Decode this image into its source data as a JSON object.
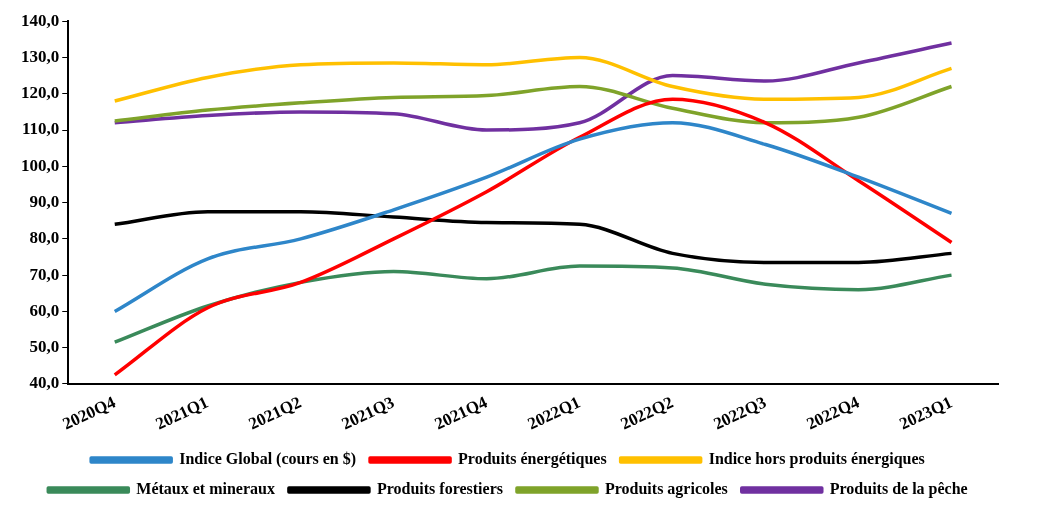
{
  "chart_data": {
    "type": "line",
    "categories": [
      "2020Q4",
      "2021Q1",
      "2021Q2",
      "2021Q3",
      "2021Q4",
      "2022Q1",
      "2022Q2",
      "2022Q3",
      "2022Q4",
      "2023Q1"
    ],
    "ylim": [
      40,
      140
    ],
    "yticks": [
      {
        "value": 40,
        "label": "40,0"
      },
      {
        "value": 50,
        "label": "50,0"
      },
      {
        "value": 60,
        "label": "60,0"
      },
      {
        "value": 70,
        "label": "70,0"
      },
      {
        "value": 80,
        "label": "80,0"
      },
      {
        "value": 90,
        "label": "90,0"
      },
      {
        "value": 100,
        "label": "100,0"
      },
      {
        "value": 110,
        "label": "110,0"
      },
      {
        "value": 120,
        "label": "120,0"
      },
      {
        "value": 130,
        "label": "130,0"
      },
      {
        "value": 140,
        "label": "140,0"
      }
    ],
    "grid": false,
    "legend": "bottom",
    "marker": "none",
    "line_style": "solid",
    "series": [
      {
        "name": "Indice Global (cours en $)",
        "color": "#2e86c9",
        "values": [
          60,
          74.5,
          80,
          88,
          97,
          107.5,
          112,
          106,
          97,
          87
        ]
      },
      {
        "name": "Produits énergétiques",
        "color": "#ff0000",
        "values": [
          42.5,
          61,
          68,
          80,
          93,
          108,
          118.5,
          112,
          96,
          79
        ]
      },
      {
        "name": "Indice hors produits énergiques",
        "color": "#ffc000",
        "values": [
          118,
          124.5,
          128,
          128.5,
          128,
          130,
          122,
          118.5,
          119,
          127
        ]
      },
      {
        "name": "Métaux et mineraux",
        "color": "#3a8a5a",
        "values": [
          51.5,
          61.5,
          68,
          71,
          69,
          72.5,
          72,
          67.5,
          66,
          70
        ]
      },
      {
        "name": "Produits forestiers",
        "color": "#000000",
        "values": [
          84,
          87.5,
          87.5,
          86,
          84.5,
          84,
          76,
          73.5,
          73.5,
          76
        ]
      },
      {
        "name": "Produits agricoles",
        "color": "#7fa32a",
        "values": [
          112.5,
          115.5,
          117.5,
          119,
          119.5,
          122,
          116,
          112,
          113.5,
          122
        ]
      },
      {
        "name": "Produits de la pêche",
        "color": "#7030a0",
        "values": [
          112,
          114,
          115,
          114.5,
          110,
          112,
          125,
          123.5,
          128.5,
          134
        ]
      }
    ]
  }
}
